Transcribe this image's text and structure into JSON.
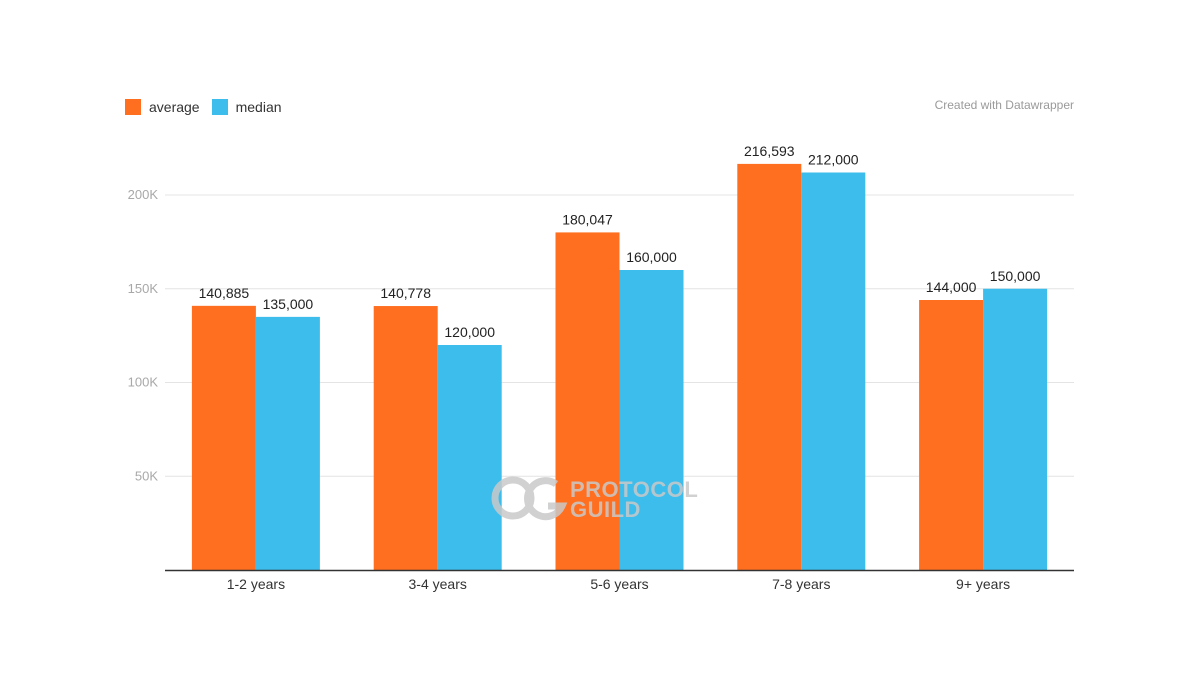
{
  "legend": [
    {
      "label": "average",
      "color": "#ff6f1f"
    },
    {
      "label": "median",
      "color": "#3dbdeb"
    }
  ],
  "credit": "Created with Datawrapper",
  "watermark": {
    "line1": "PROTOCOL",
    "line2": "GUILD"
  },
  "chart_data": {
    "type": "bar",
    "title": "",
    "xlabel": "",
    "ylabel": "",
    "ylim": [
      0,
      200000
    ],
    "yticks": [
      {
        "value": 50000,
        "label": "50K"
      },
      {
        "value": 100000,
        "label": "100K"
      },
      {
        "value": 150000,
        "label": "150K"
      },
      {
        "value": 200000,
        "label": "200K"
      }
    ],
    "grid": true,
    "legend_position": "top-left",
    "categories": [
      "1-2 years",
      "3-4 years",
      "5-6 years",
      "7-8 years",
      "9+ years"
    ],
    "series": [
      {
        "name": "average",
        "color": "#ff6f1f",
        "values": [
          140885,
          140778,
          180047,
          216593,
          144000
        ],
        "labels": [
          "140,885",
          "140,778",
          "180,047",
          "216,593",
          "144,000"
        ]
      },
      {
        "name": "median",
        "color": "#3dbdeb",
        "values": [
          135000,
          120000,
          160000,
          212000,
          150000
        ],
        "labels": [
          "135,000",
          "120,000",
          "160,000",
          "212,000",
          "150,000"
        ]
      }
    ]
  }
}
